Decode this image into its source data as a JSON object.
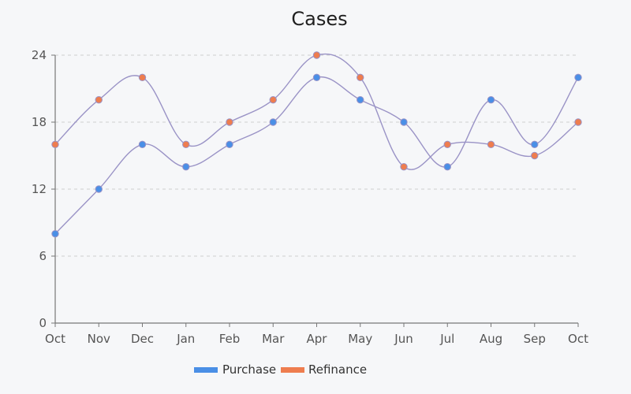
{
  "chart_data": {
    "type": "line",
    "title": "Cases",
    "xlabel": "",
    "ylabel": "",
    "categories": [
      "Oct",
      "Nov",
      "Dec",
      "Jan",
      "Feb",
      "Mar",
      "Apr",
      "May",
      "Jun",
      "Jul",
      "Aug",
      "Sep",
      "Oct"
    ],
    "yticks": [
      0,
      6,
      12,
      18,
      24
    ],
    "ylim": [
      0,
      24
    ],
    "grid": "horizontal dashed",
    "legend_position": "bottom-center",
    "line_color": "#9a93c6",
    "series": [
      {
        "name": "Purchase",
        "color": "#4a8fe6",
        "values": [
          8,
          12,
          16,
          14,
          16,
          18,
          22,
          20,
          18,
          14,
          20,
          16,
          22
        ]
      },
      {
        "name": "Refinance",
        "color": "#ee7d4f",
        "values": [
          16,
          20,
          22,
          16,
          18,
          20,
          24,
          22,
          14,
          16,
          16,
          15,
          18
        ]
      }
    ]
  }
}
